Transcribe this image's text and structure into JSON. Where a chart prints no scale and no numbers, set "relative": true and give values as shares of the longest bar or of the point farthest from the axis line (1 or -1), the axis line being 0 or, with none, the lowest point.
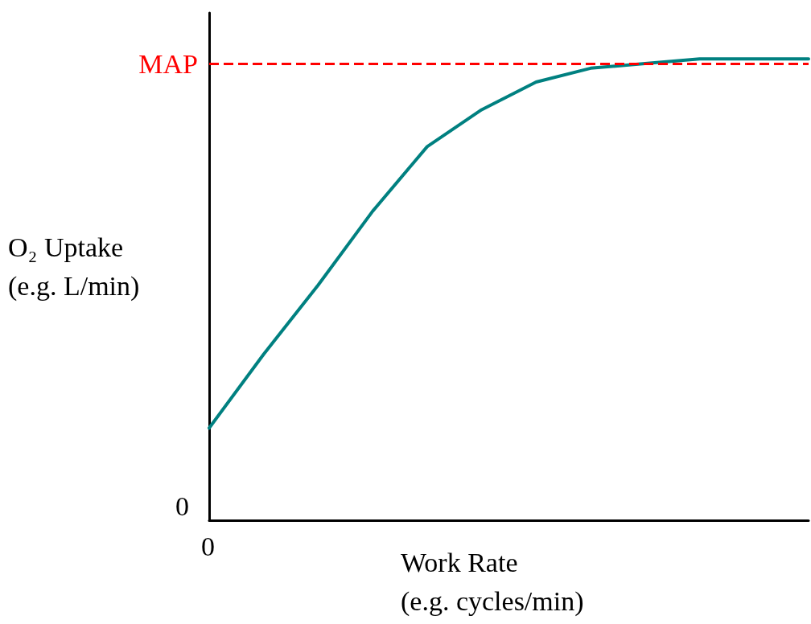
{
  "chart_data": {
    "type": "line",
    "relative": true,
    "xlabel": "Work Rate\n(e.g. cycles/min)",
    "ylabel": "O₂ Uptake\n(e.g. L/min)",
    "categories": [
      null,
      null,
      null,
      null,
      null,
      null,
      null,
      null,
      null,
      null,
      null,
      null
    ],
    "series": [
      {
        "color": "#008080",
        "values": [
          0.2,
          0.36,
          0.51,
          0.67,
          0.81,
          0.89,
          0.95,
          0.98,
          0.99,
          1.0,
          1.0,
          1.0
        ]
      }
    ],
    "ref_lines": [
      {
        "axis": "y",
        "value": 0.99,
        "label": "MAP",
        "color": "#ff0000",
        "line_style": "dashed"
      }
    ],
    "annotations": [
      "0",
      "0"
    ],
    "grid": false,
    "marker": "none",
    "line_style": "solid"
  }
}
